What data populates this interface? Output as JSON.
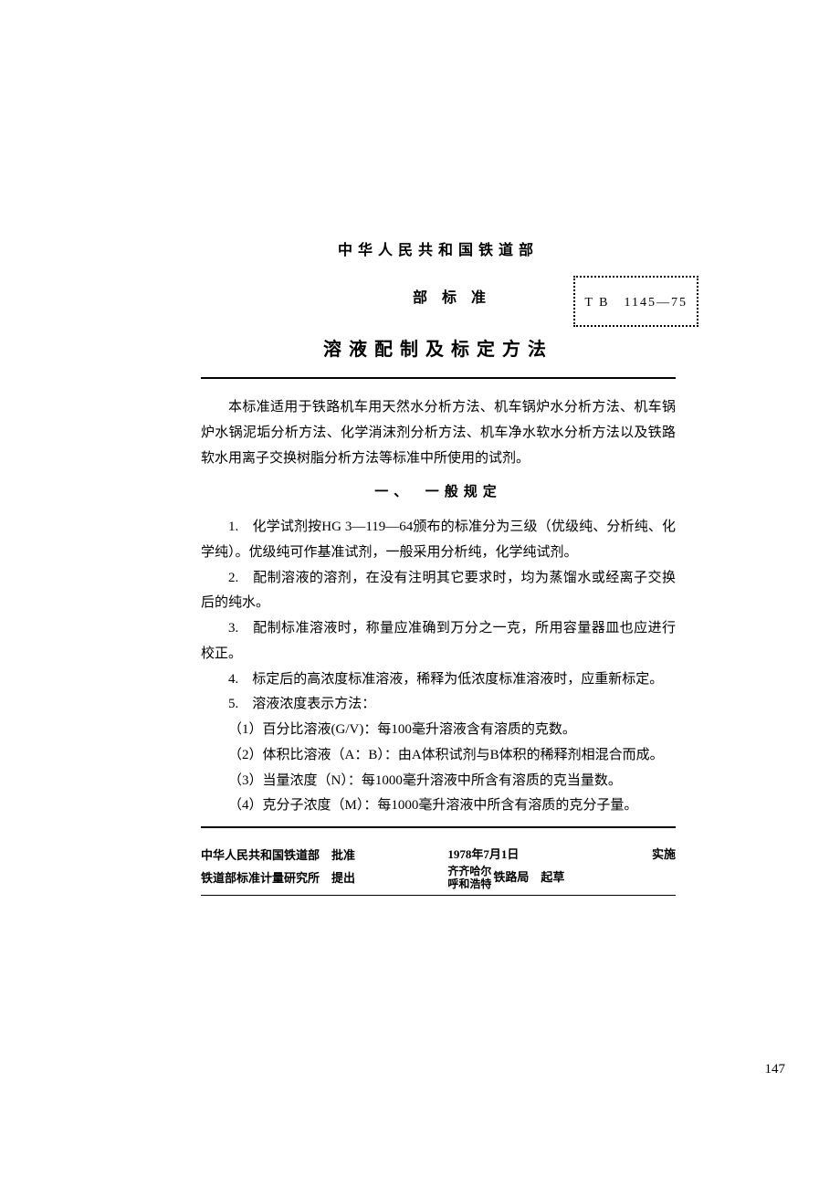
{
  "header": {
    "org": "中华人民共和国铁道部",
    "sub": "部标准",
    "title": "溶液配制及标定方法",
    "std_code": "T B　1145—75"
  },
  "intro": "本标准适用于铁路机车用天然水分析方法、机车锅炉水分析方法、机车锅炉水锅泥垢分析方法、化学消沫剂分析方法、机车净水软水分析方法以及铁路软水用离子交换树脂分析方法等标准中所使用的试剂。",
  "section1": {
    "head": "一、　一般规定",
    "p1": "1.　化学试剂按HG 3—119—64颁布的标准分为三级（优级纯、分析纯、化学纯）。优级纯可作基准试剂，一般采用分析纯，化学纯试剂。",
    "p2": "2.　配制溶液的溶剂，在没有注明其它要求时，均为蒸馏水或经离子交换后的纯水。",
    "p3": "3.　配制标准溶液时，称量应准确到万分之一克，所用容量器皿也应进行校正。",
    "p4": "4.　标定后的高浓度标准溶液，稀释为低浓度标准溶液时，应重新标定。",
    "p5": "5.　溶液浓度表示方法：",
    "p5_1": "（1）百分比溶液(G/V)：每100毫升溶液含有溶质的克数。",
    "p5_2": "（2）体积比溶液（A：B）：由A体积试剂与B体积的稀释剂相混合而成。",
    "p5_3": "（3）当量浓度（N）：每1000毫升溶液中所含有溶质的克当量数。",
    "p5_4": "（4）克分子浓度（M）：每1000毫升溶液中所含有溶质的克分子量。"
  },
  "footer": {
    "approve": "中华人民共和国铁道部　批准",
    "propose": "铁道部标准计量研究所　提出",
    "effective_date": "1978年7月1日",
    "effective_label": "实施",
    "draft_org1": "齐齐哈尔",
    "draft_org2": "呼和浩特",
    "draft_suffix": "铁路局　起草"
  },
  "page_number": "147"
}
